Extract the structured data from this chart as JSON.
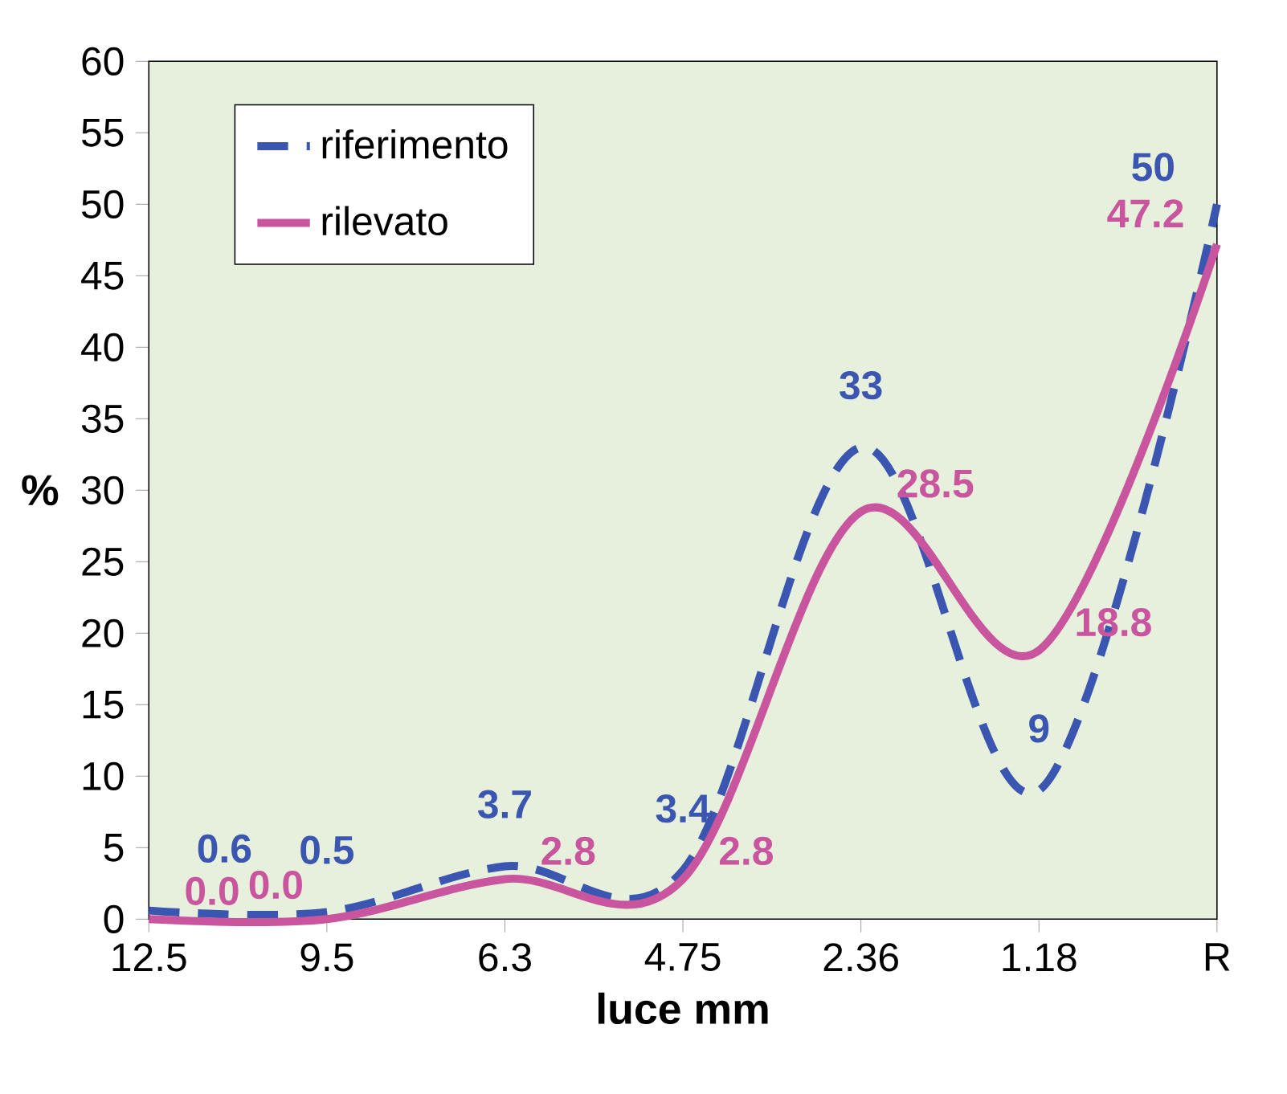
{
  "chart_data": {
    "type": "line",
    "xlabel": "luce mm",
    "ylabel": "%",
    "categories": [
      "12.5",
      "9.5",
      "6.3",
      "4.75",
      "2.36",
      "1.18",
      "R"
    ],
    "series": [
      {
        "name": "riferimento",
        "color": "#3a56b0",
        "line_style": "dashed",
        "values": [
          0.6,
          0.5,
          3.7,
          3.4,
          33,
          9,
          50
        ],
        "value_labels": [
          "0.6",
          "0.5",
          "3.7",
          "3.4",
          "33",
          "9",
          "50"
        ]
      },
      {
        "name": "rilevato",
        "color": "#c8559e",
        "line_style": "solid",
        "values": [
          0,
          0,
          2.8,
          2.8,
          28.5,
          18.8,
          47.2
        ],
        "value_labels": [
          "0.0",
          "0.0",
          "2.8",
          "2.8",
          "28.5",
          "18.8",
          "47.2"
        ]
      }
    ],
    "ylim": [
      0,
      60
    ],
    "yticks": [
      0,
      5,
      10,
      15,
      20,
      25,
      30,
      35,
      40,
      45,
      50,
      55,
      60
    ],
    "data_labels": true,
    "legend": "top left",
    "grid": false,
    "marker": "none"
  }
}
